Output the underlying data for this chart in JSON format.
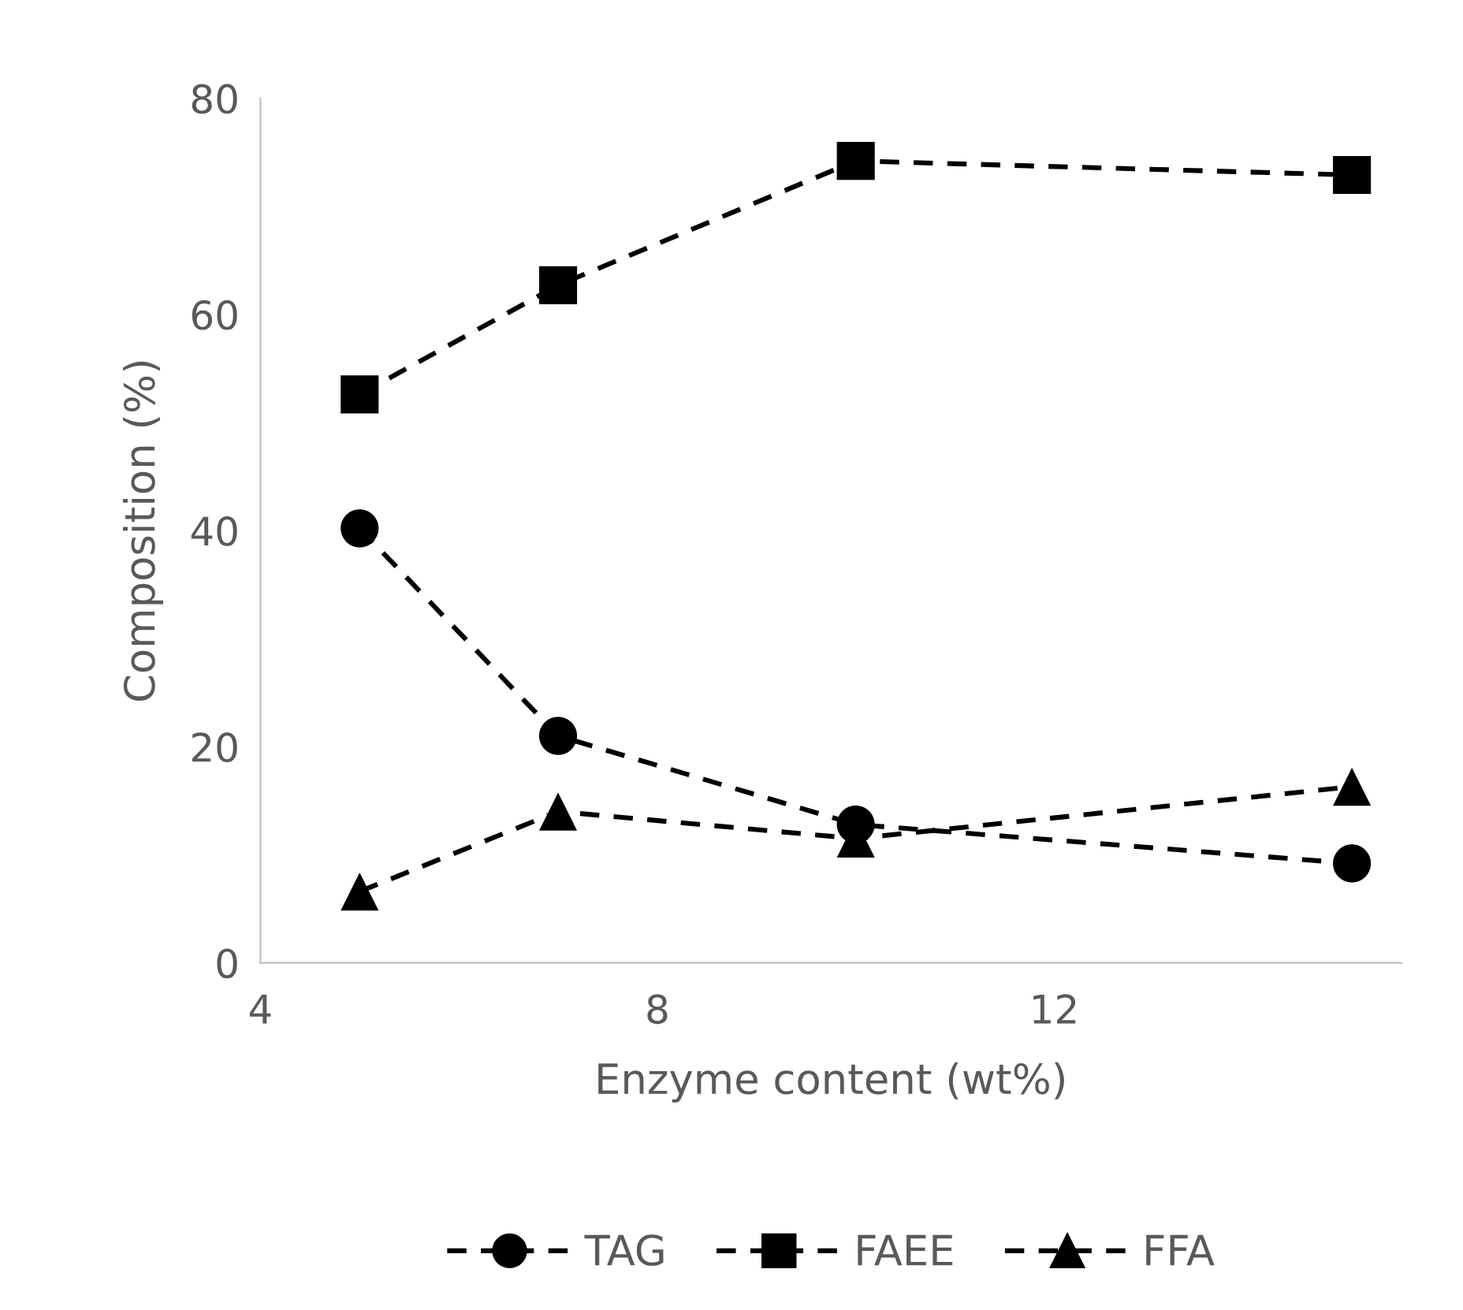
{
  "chart_data": {
    "type": "line",
    "xlabel": "Enzyme content (wt%)",
    "ylabel": "Composition (%)",
    "x": [
      5,
      7,
      10,
      15
    ],
    "series": [
      {
        "name": "TAG",
        "color": "#000000",
        "marker": "circle",
        "values": [
          40.2,
          21.0,
          12.8,
          9.2
        ]
      },
      {
        "name": "FAEE",
        "color": "#000000",
        "marker": "square",
        "values": [
          52.6,
          62.7,
          74.2,
          72.9
        ]
      },
      {
        "name": "FFA",
        "color": "#000000",
        "marker": "triangle",
        "values": [
          6.6,
          14.0,
          11.5,
          16.3
        ]
      }
    ],
    "xlim": [
      4,
      15.5
    ],
    "xticks": [
      4,
      8,
      12
    ],
    "ylim": [
      0,
      80
    ],
    "yticks": [
      0,
      20,
      40,
      60,
      80
    ],
    "line_style": "dashed",
    "grid": false,
    "legend": "bottom"
  }
}
